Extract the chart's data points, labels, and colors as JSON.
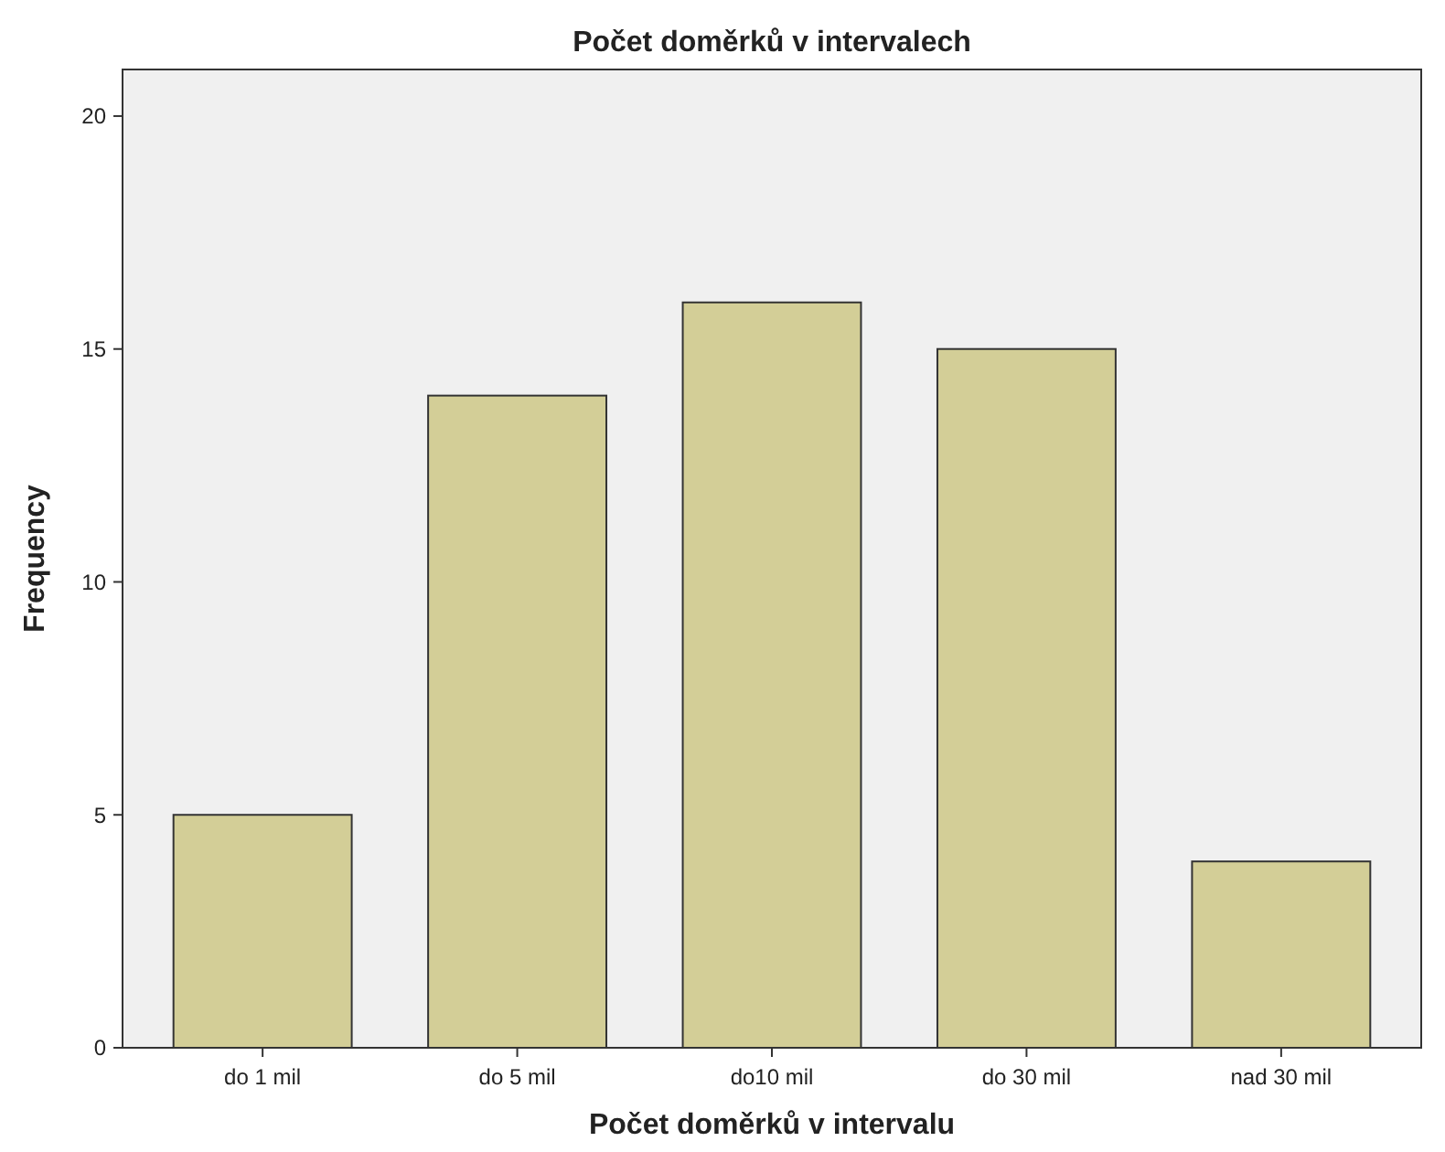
{
  "chart_data": {
    "type": "bar",
    "title": "Počet doměrků v intervalech",
    "xlabel": "Počet doměrků v intervalu",
    "ylabel": "Frequency",
    "categories": [
      "do 1 mil",
      "do 5 mil",
      "do10 mil",
      "do 30 mil",
      "nad 30 mil"
    ],
    "values": [
      5,
      14,
      16,
      15,
      4
    ],
    "color": "#d3ce97",
    "ylim": [
      0,
      21
    ],
    "yticks": [
      0,
      5,
      10,
      15,
      20
    ],
    "grid": false
  }
}
